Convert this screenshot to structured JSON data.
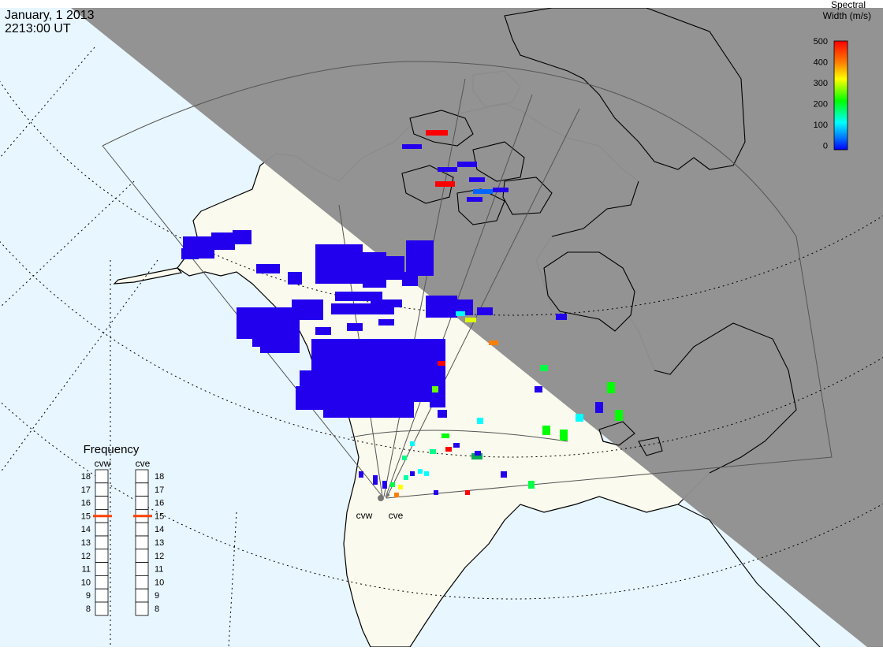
{
  "header": {
    "date": "January, 1 2013",
    "time": "2213:00 UT"
  },
  "colorbar": {
    "title_line1": "Spectral",
    "title_line2": "Width (m/s)",
    "ticks": [
      "500",
      "400",
      "300",
      "200",
      "100",
      "0"
    ],
    "range": [
      0,
      500
    ],
    "colors": [
      "#ff0000",
      "#ff8000",
      "#ffff00",
      "#00ff00",
      "#00ffff",
      "#0080ff",
      "#0000ff"
    ]
  },
  "frequency": {
    "title": "Frequency",
    "radars": [
      {
        "name": "cvw",
        "selected": 15
      },
      {
        "name": "cve",
        "selected": 15
      }
    ],
    "levels": [
      "18",
      "17",
      "16",
      "15",
      "14",
      "13",
      "12",
      "11",
      "10",
      "9",
      "8"
    ],
    "marker_color": "#ff4000"
  },
  "stations": [
    {
      "name": "cvw"
    },
    {
      "name": "cve"
    }
  ],
  "colors": {
    "ocean": "#e8f6ff",
    "land": "#fafaee",
    "night": "#8f8f8f",
    "scatter": "#2200ee"
  }
}
